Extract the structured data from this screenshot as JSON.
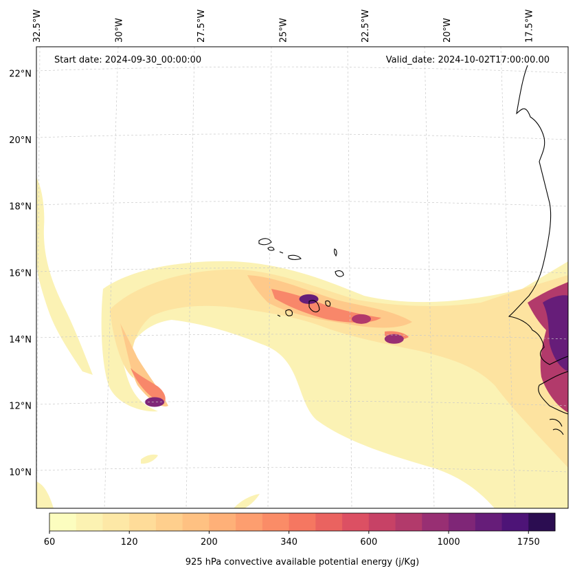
{
  "chart_data": {
    "type": "heatmap",
    "title": "",
    "start_date": "Start date: 2024-09-30_00:00:00",
    "valid_date": "Valid_date: 2024-10-02T17:00:00.00",
    "variable_label": "925 hPa convective available potential energy (j/Kg)",
    "colorbar": {
      "levels": [
        60,
        80,
        100,
        120,
        140,
        160,
        200,
        240,
        280,
        340,
        400,
        480,
        600,
        700,
        850,
        1000,
        1200,
        1450,
        1750,
        2100
      ],
      "tick_labels": [
        "60",
        "120",
        "200",
        "340",
        "600",
        "1000",
        "1750"
      ],
      "tick_values": [
        60,
        120,
        200,
        340,
        600,
        1000,
        1750
      ],
      "colors": [
        "#fcfdbf",
        "#fcf2b2",
        "#fde8a6",
        "#fedc99",
        "#fecf8d",
        "#fec182",
        "#feb078",
        "#fd9e6f",
        "#fa8c67",
        "#f57761",
        "#ea6360",
        "#dc5063",
        "#c74266",
        "#b23a6b",
        "#982f73",
        "#7f2677",
        "#661d79",
        "#4d1477",
        "#2b0d51"
      ]
    },
    "lon_ticks": [
      "32.5°W",
      "30°W",
      "27.5°W",
      "25°W",
      "22.5°W",
      "20°W",
      "17.5°W"
    ],
    "lat_ticks": [
      "22°N",
      "20°N",
      "18°N",
      "16°N",
      "14°N",
      "12°N",
      "10°N"
    ],
    "lon_tick_values": [
      -32.5,
      -30,
      -27.5,
      -25,
      -22.5,
      -20,
      -17.5
    ],
    "lat_tick_values": [
      22,
      20,
      18,
      16,
      14,
      12,
      10
    ],
    "lon_range": [
      -32.5,
      -16.3
    ],
    "lat_range": [
      8.9,
      22.8
    ],
    "grid": true,
    "cape_centers": [
      {
        "lon": -28.9,
        "lat": 12.1,
        "cape": 1000
      },
      {
        "lon": -24.2,
        "lat": 15.2,
        "cape": 1200
      },
      {
        "lon": -22.6,
        "lat": 14.6,
        "cape": 700
      },
      {
        "lon": -21.6,
        "lat": 14.0,
        "cape": 850
      },
      {
        "lon": -16.8,
        "lat": 14.8,
        "cape": 1750
      },
      {
        "lon": -16.7,
        "lat": 13.2,
        "cape": 1450
      }
    ]
  }
}
